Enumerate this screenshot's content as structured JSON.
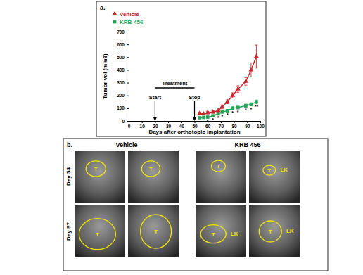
{
  "chart_data": {
    "type": "line",
    "panel_label": "a.",
    "x_label": "Days after orthotopic implantation",
    "y_label": "Tumor vol (mm3)",
    "x": [
      54,
      57,
      60,
      64,
      68,
      71,
      75,
      79,
      83,
      89,
      93,
      97
    ],
    "series": [
      {
        "name": "Vehicle",
        "color": "#c8262c",
        "marker": "triangle",
        "line_style": "solid",
        "values": [
          60,
          55,
          65,
          70,
          80,
          110,
          150,
          200,
          250,
          310,
          400,
          505
        ],
        "errors": [
          10,
          8,
          10,
          10,
          12,
          15,
          15,
          20,
          25,
          30,
          55,
          90
        ]
      },
      {
        "name": "KRB-456",
        "color": "#25a55a",
        "marker": "square",
        "line_style": "solid",
        "values": [
          25,
          28,
          30,
          40,
          55,
          70,
          80,
          100,
          105,
          120,
          130,
          150
        ],
        "errors": [
          5,
          5,
          6,
          6,
          8,
          8,
          10,
          10,
          10,
          12,
          12,
          14
        ],
        "significance": [
          null,
          null,
          "*",
          "*",
          "*",
          "*",
          "*",
          "*",
          "*",
          "*",
          "*",
          "**"
        ]
      }
    ],
    "xlim": [
      0,
      100
    ],
    "xticks": [
      0,
      10,
      20,
      30,
      40,
      50,
      60,
      70,
      80,
      90,
      100
    ],
    "ylim": [
      0,
      700
    ],
    "yticks": [
      0,
      100,
      200,
      300,
      400,
      500,
      600,
      700
    ],
    "legend": "top-left",
    "grid": false,
    "annotations": {
      "treatment": {
        "label": "Treatment",
        "start": {
          "x": 20,
          "label": "Start"
        },
        "stop": {
          "x": 50,
          "label": "Stop"
        }
      }
    }
  },
  "images": {
    "panel_label": "b.",
    "columns": [
      "Vehicle",
      "KRB 456"
    ],
    "rows": [
      "Day 54",
      "Day 97"
    ],
    "cells": [
      [
        [
          "T"
        ],
        [
          "T"
        ],
        [
          "T"
        ],
        [
          "T",
          "LK"
        ]
      ],
      [
        [
          "T"
        ],
        [
          "T"
        ],
        [
          "T",
          "LK"
        ],
        [
          "T",
          "LK"
        ]
      ]
    ]
  }
}
